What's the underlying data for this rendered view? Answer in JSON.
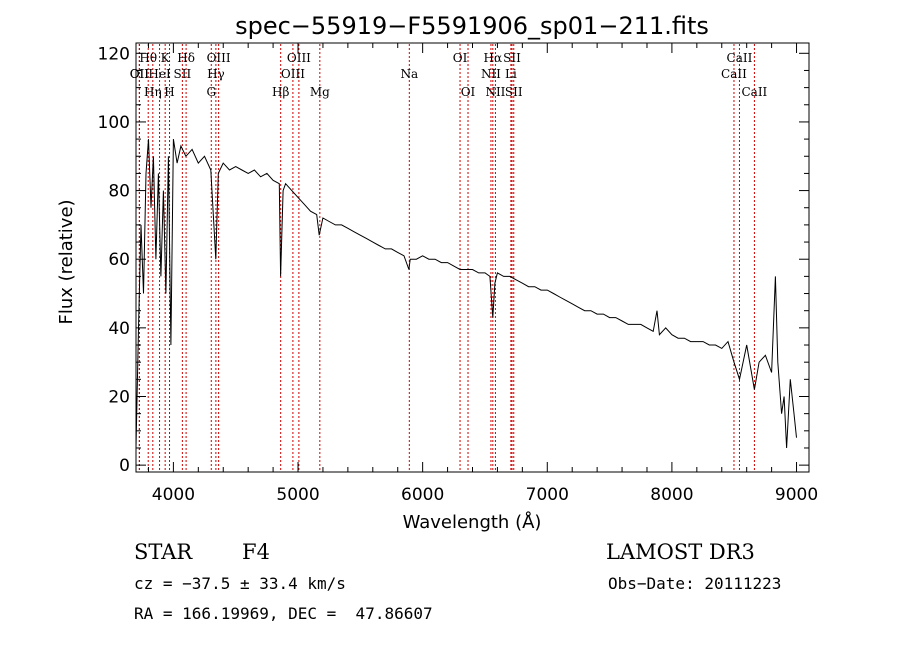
{
  "chart_data": {
    "type": "line",
    "title": "spec−55919−F5591906_sp01−211.fits",
    "xlabel": "Wavelength (Å)",
    "ylabel": "Flux (relative)",
    "xlim": [
      3700,
      9100
    ],
    "ylim": [
      -2,
      123
    ],
    "xticks": [
      4000,
      5000,
      6000,
      7000,
      8000,
      9000
    ],
    "yticks": [
      0,
      20,
      40,
      60,
      80,
      100,
      120
    ],
    "series": [
      {
        "name": "spectrum",
        "x": [
          3700,
          3720,
          3740,
          3760,
          3780,
          3800,
          3820,
          3840,
          3860,
          3880,
          3900,
          3920,
          3940,
          3960,
          3980,
          4000,
          4030,
          4060,
          4100,
          4150,
          4200,
          4250,
          4300,
          4340,
          4360,
          4400,
          4450,
          4500,
          4550,
          4600,
          4650,
          4700,
          4750,
          4800,
          4850,
          4860,
          4880,
          4900,
          4950,
          5000,
          5050,
          5100,
          5150,
          5170,
          5200,
          5250,
          5300,
          5350,
          5400,
          5450,
          5500,
          5550,
          5600,
          5650,
          5700,
          5750,
          5800,
          5850,
          5890,
          5900,
          5950,
          6000,
          6050,
          6100,
          6150,
          6200,
          6250,
          6300,
          6350,
          6400,
          6450,
          6500,
          6540,
          6563,
          6580,
          6600,
          6650,
          6700,
          6750,
          6800,
          6850,
          6900,
          6950,
          7000,
          7050,
          7100,
          7150,
          7200,
          7250,
          7300,
          7350,
          7400,
          7450,
          7500,
          7550,
          7600,
          7650,
          7700,
          7750,
          7800,
          7850,
          7880,
          7900,
          7950,
          8000,
          8050,
          8100,
          8150,
          8200,
          8250,
          8300,
          8350,
          8400,
          8450,
          8498,
          8542,
          8600,
          8662,
          8700,
          8750,
          8800,
          8830,
          8850,
          8880,
          8900,
          8920,
          8950,
          8980,
          9000
        ],
        "y": [
          5,
          40,
          70,
          50,
          85,
          95,
          75,
          90,
          60,
          85,
          55,
          80,
          50,
          90,
          35,
          95,
          88,
          93,
          90,
          92,
          88,
          90,
          86,
          60,
          85,
          88,
          86,
          87,
          86,
          85,
          86,
          84,
          85,
          83,
          82,
          55,
          80,
          82,
          80,
          78,
          76,
          74,
          73,
          67,
          72,
          71,
          70,
          70,
          69,
          68,
          67,
          66,
          65,
          64,
          63,
          63,
          62,
          61,
          57,
          60,
          60,
          61,
          60,
          60,
          59,
          59,
          58,
          57,
          57,
          57,
          56,
          56,
          55,
          43,
          53,
          56,
          55,
          55,
          54,
          53,
          52,
          52,
          51,
          51,
          50,
          49,
          48,
          47,
          46,
          45,
          45,
          44,
          44,
          43,
          43,
          42,
          41,
          41,
          41,
          40,
          39,
          45,
          38,
          40,
          38,
          37,
          37,
          36,
          36,
          36,
          35,
          35,
          34,
          36,
          30,
          25,
          35,
          22,
          30,
          32,
          27,
          55,
          30,
          15,
          20,
          5,
          25,
          15,
          8
        ]
      }
    ],
    "line_markers": [
      {
        "name": "OII",
        "x": 3727,
        "row": 2
      },
      {
        "name": "Hθ",
        "x": 3798,
        "row": 1
      },
      {
        "name": "OII",
        "x": 3727,
        "row": 2
      },
      {
        "name": "Hη",
        "x": 3835,
        "row": 3
      },
      {
        "name": "K",
        "x": 3934,
        "row": 1
      },
      {
        "name": "HeI",
        "x": 3889,
        "row": 2
      },
      {
        "name": "H",
        "x": 3969,
        "row": 3
      },
      {
        "name": "SII",
        "x": 4072,
        "row": 2
      },
      {
        "name": "Hδ",
        "x": 4102,
        "row": 1
      },
      {
        "name": "OIII",
        "x": 4363,
        "row": 1
      },
      {
        "name": "Hγ",
        "x": 4341,
        "row": 2
      },
      {
        "name": "G",
        "x": 4304,
        "row": 3
      },
      {
        "name": "Hβ",
        "x": 4861,
        "row": 3
      },
      {
        "name": "OIII",
        "x": 4959,
        "row": 2
      },
      {
        "name": "OIII",
        "x": 5007,
        "row": 1
      },
      {
        "name": "Mg",
        "x": 5175,
        "row": 3
      },
      {
        "name": "Na",
        "x": 5893,
        "row": 2
      },
      {
        "name": "OI",
        "x": 6300,
        "row": 1
      },
      {
        "name": "OI",
        "x": 6364,
        "row": 3
      },
      {
        "name": "Hα",
        "x": 6563,
        "row": 1
      },
      {
        "name": "NII",
        "x": 6548,
        "row": 2
      },
      {
        "name": "NII",
        "x": 6584,
        "row": 3
      },
      {
        "name": "SII",
        "x": 6717,
        "row": 1
      },
      {
        "name": "Li",
        "x": 6708,
        "row": 2
      },
      {
        "name": "SII",
        "x": 6731,
        "row": 3
      },
      {
        "name": "CaII",
        "x": 8542,
        "row": 1
      },
      {
        "name": "CaII",
        "x": 8498,
        "row": 2
      },
      {
        "name": "CaII",
        "x": 8662,
        "row": 3
      }
    ]
  },
  "info": {
    "object_class": "STAR",
    "subclass": "F4",
    "survey": "LAMOST DR3",
    "redshift_line": "cz = −37.5 ± 33.4 km/s",
    "obs_date": "Obs−Date: 20111223",
    "coords": "RA = 166.19969, DEC =  47.86607"
  }
}
